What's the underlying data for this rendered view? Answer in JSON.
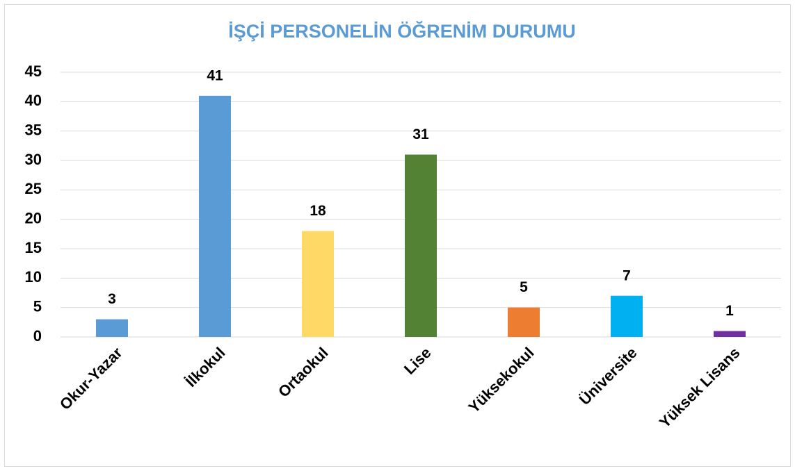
{
  "chart_data": {
    "type": "bar",
    "title": "İŞÇİ PERSONELİN ÖĞRENİM DURUMU",
    "categories": [
      "Okur-Yazar",
      "İlkokul",
      "Ortaokul",
      "Lise",
      "Yüksekokul",
      "Üniversite",
      "Yüksek Lisans"
    ],
    "values": [
      3,
      41,
      18,
      31,
      5,
      7,
      1
    ],
    "colors": [
      "#5b9bd5",
      "#5b9bd5",
      "#ffd966",
      "#548235",
      "#ed7d31",
      "#00b0f0",
      "#7030a0"
    ],
    "ylim": [
      0,
      45
    ],
    "yticks": [
      0,
      5,
      10,
      15,
      20,
      25,
      30,
      35,
      40,
      45
    ],
    "grid": true
  }
}
